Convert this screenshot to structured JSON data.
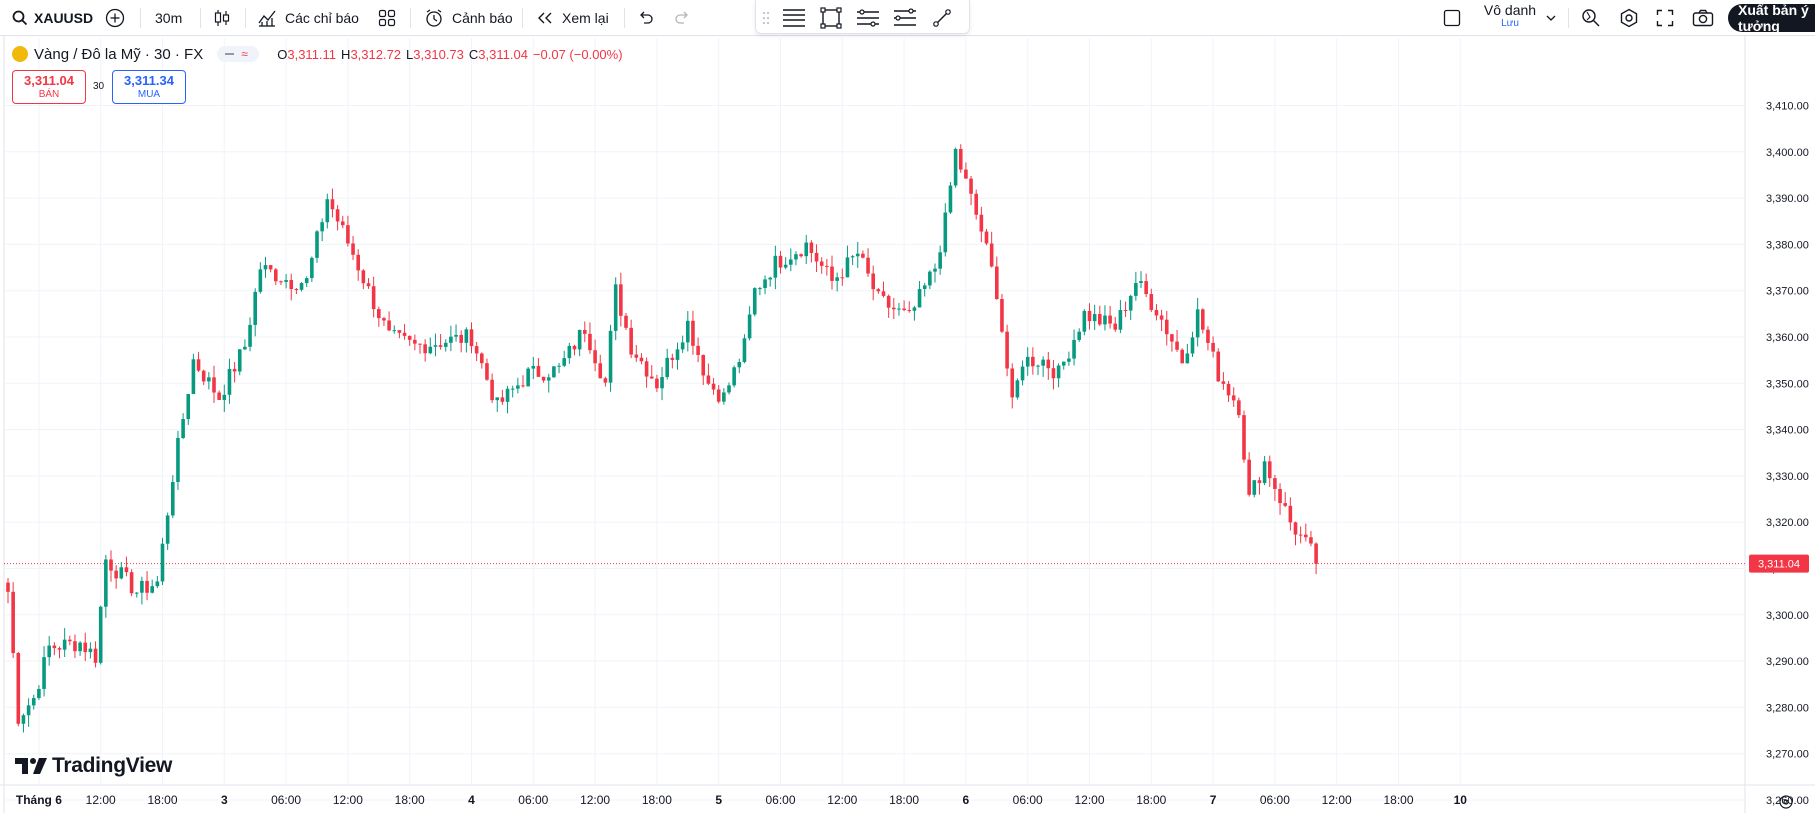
{
  "toolbar": {
    "symbol": "XAUUSD",
    "interval": "30m",
    "indicators_label": "Các chỉ báo",
    "alerts_label": "Cảnh báo",
    "replay_label": "Xem lại",
    "watchlist_name": "Vô danh",
    "save_label": "Lưu",
    "publish_label": "Xuất bản ý tưởng",
    "icons": [
      "search-icon",
      "add-symbol-icon",
      "candles-icon",
      "indicators-icon",
      "templates-icon",
      "alert-icon",
      "replay-icon",
      "undo-icon",
      "redo-icon",
      "drag-handle-icon",
      "horizontal-lines-icon",
      "rectangle-icon",
      "parallel-channel-icon",
      "regression-channel-icon",
      "brush-icon",
      "layout-icon",
      "chevron-down-icon",
      "quick-search-icon",
      "settings-icon",
      "fullscreen-icon",
      "camera-icon"
    ]
  },
  "legend": {
    "title": "Vàng / Đô la Mỹ · 30 · FX",
    "o_label": "O",
    "o": "3,311.11",
    "h_label": "H",
    "h": "3,312.72",
    "l_label": "L",
    "l": "3,310.73",
    "c_label": "C",
    "c": "3,311.04",
    "change": "−0.07 (−0.00%)"
  },
  "trade": {
    "sell_price": "3,311.04",
    "sell_label": "BÁN",
    "spread": "30",
    "buy_price": "3,311.34",
    "buy_label": "MUA"
  },
  "brand": "TradingView",
  "colors": {
    "up": "#089981",
    "down": "#f23645",
    "grid": "#f0f3fa",
    "text": "#131722"
  },
  "chart_data": {
    "type": "candlestick",
    "y_ticks": [
      "3,410.00",
      "3,400.00",
      "3,390.00",
      "3,380.00",
      "3,370.00",
      "3,360.00",
      "3,350.00",
      "3,340.00",
      "3,330.00",
      "3,320.00",
      "3,310.00",
      "3,300.00",
      "3,290.00",
      "3,280.00",
      "3,270.00",
      "3,260.00"
    ],
    "y_tick_values": [
      3410,
      3400,
      3390,
      3380,
      3370,
      3360,
      3350,
      3340,
      3330,
      3320,
      3310,
      3300,
      3290,
      3280,
      3270,
      3260
    ],
    "x_ticks": [
      "Tháng 6",
      "12:00",
      "18:00",
      "3",
      "06:00",
      "12:00",
      "18:00",
      "4",
      "06:00",
      "12:00",
      "18:00",
      "5",
      "06:00",
      "12:00",
      "18:00",
      "6",
      "06:00",
      "12:00",
      "18:00",
      "7",
      "06:00",
      "12:00",
      "18:00",
      "10"
    ],
    "x_tick_bars": [
      6,
      18,
      30,
      42,
      54,
      66,
      78,
      90,
      102,
      114,
      126,
      138,
      150,
      162,
      174,
      186,
      198,
      210,
      222,
      234,
      246,
      258,
      270,
      282
    ],
    "ylim": [
      3258,
      3415
    ],
    "last_price": "3,311.04",
    "last_value": 3311.04,
    "anchors": [
      [
        0,
        3305
      ],
      [
        2,
        3278
      ],
      [
        5,
        3282
      ],
      [
        8,
        3293
      ],
      [
        14,
        3294
      ],
      [
        17,
        3291
      ],
      [
        19,
        3312
      ],
      [
        25,
        3305
      ],
      [
        29,
        3307
      ],
      [
        32,
        3330
      ],
      [
        36,
        3355
      ],
      [
        41,
        3347
      ],
      [
        46,
        3358
      ],
      [
        49,
        3375
      ],
      [
        55,
        3372
      ],
      [
        58,
        3372
      ],
      [
        62,
        3390
      ],
      [
        67,
        3378
      ],
      [
        70,
        3370
      ],
      [
        74,
        3360
      ],
      [
        79,
        3358
      ],
      [
        84,
        3359
      ],
      [
        90,
        3360
      ],
      [
        95,
        3345
      ],
      [
        101,
        3352
      ],
      [
        107,
        3353
      ],
      [
        112,
        3362
      ],
      [
        116,
        3350
      ],
      [
        118,
        3370
      ],
      [
        121,
        3358
      ],
      [
        126,
        3350
      ],
      [
        132,
        3363
      ],
      [
        136,
        3350
      ],
      [
        139,
        3347
      ],
      [
        143,
        3358
      ],
      [
        145,
        3370
      ],
      [
        149,
        3376
      ],
      [
        155,
        3380
      ],
      [
        160,
        3372
      ],
      [
        165,
        3378
      ],
      [
        169,
        3368
      ],
      [
        175,
        3364
      ],
      [
        180,
        3375
      ],
      [
        182,
        3385
      ],
      [
        184,
        3400
      ],
      [
        189,
        3383
      ],
      [
        192,
        3370
      ],
      [
        195,
        3345
      ],
      [
        197,
        3355
      ],
      [
        201,
        3355
      ],
      [
        204,
        3352
      ],
      [
        209,
        3365
      ],
      [
        215,
        3362
      ],
      [
        219,
        3372
      ],
      [
        223,
        3366
      ],
      [
        228,
        3355
      ],
      [
        231,
        3365
      ],
      [
        235,
        3352
      ],
      [
        239,
        3345
      ],
      [
        241,
        3325
      ],
      [
        244,
        3333
      ],
      [
        249,
        3320
      ],
      [
        254,
        3312
      ]
    ]
  }
}
